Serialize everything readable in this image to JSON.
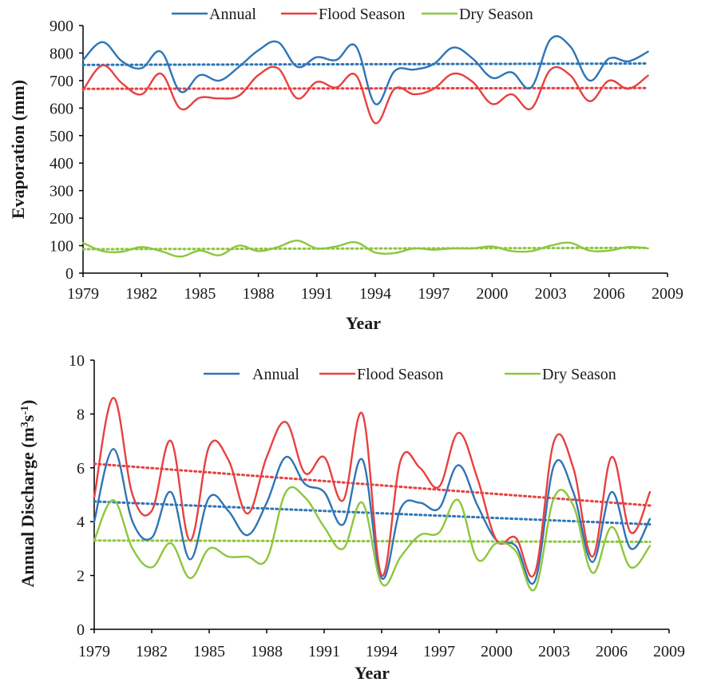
{
  "chart_data": [
    {
      "type": "line",
      "title": "",
      "xlabel": "Year",
      "ylabel": "Evaporation (mm)",
      "xlim": [
        1979,
        2009
      ],
      "ylim": [
        0,
        900
      ],
      "xticks": [
        1979,
        1982,
        1985,
        1988,
        1991,
        1994,
        1997,
        2000,
        2003,
        2006,
        2009
      ],
      "yticks": [
        0,
        100,
        200,
        300,
        400,
        500,
        600,
        700,
        800,
        900
      ],
      "legend_position": "top",
      "x": [
        1979,
        1980,
        1981,
        1982,
        1983,
        1984,
        1985,
        1986,
        1987,
        1988,
        1989,
        1990,
        1991,
        1992,
        1993,
        1994,
        1995,
        1996,
        1997,
        1998,
        1999,
        2000,
        2001,
        2002,
        2003,
        2004,
        2005,
        2006,
        2007,
        2008
      ],
      "series": [
        {
          "name": "Annual",
          "color": "#2e75b6",
          "values": [
            775,
            840,
            770,
            745,
            805,
            660,
            720,
            700,
            750,
            810,
            840,
            750,
            785,
            775,
            825,
            615,
            735,
            740,
            760,
            820,
            780,
            710,
            730,
            675,
            850,
            825,
            700,
            780,
            770,
            805
          ],
          "trend": [
            757,
            762
          ]
        },
        {
          "name": "Flood Season",
          "color": "#e84040",
          "values": [
            665,
            755,
            690,
            650,
            725,
            598,
            638,
            635,
            645,
            720,
            745,
            635,
            695,
            675,
            720,
            545,
            670,
            650,
            670,
            725,
            695,
            615,
            650,
            598,
            740,
            720,
            625,
            700,
            670,
            718
          ],
          "trend": [
            670,
            673
          ]
        },
        {
          "name": "Dry Season",
          "color": "#8dc63f",
          "values": [
            110,
            80,
            78,
            95,
            80,
            60,
            82,
            65,
            100,
            80,
            95,
            118,
            90,
            97,
            112,
            75,
            73,
            90,
            85,
            90,
            90,
            97,
            80,
            80,
            100,
            110,
            82,
            82,
            95,
            90
          ],
          "trend": [
            87,
            92
          ]
        }
      ]
    },
    {
      "type": "line",
      "title": "",
      "xlabel": "Year",
      "ylabel": "Annual Discharge (m",
      "ylabel_sup1": "3",
      "ylabel_mid": "s",
      "ylabel_sup2": "-1",
      "ylabel_end": ")",
      "xlim": [
        1979,
        2009
      ],
      "ylim": [
        0,
        10
      ],
      "xticks": [
        1979,
        1982,
        1985,
        1988,
        1991,
        1994,
        1997,
        2000,
        2003,
        2006,
        2009
      ],
      "yticks": [
        0,
        2,
        4,
        6,
        8,
        10
      ],
      "legend_position": "top-right",
      "x": [
        1979,
        1980,
        1981,
        1982,
        1983,
        1984,
        1985,
        1986,
        1987,
        1988,
        1989,
        1990,
        1991,
        1992,
        1993,
        1994,
        1995,
        1996,
        1997,
        1998,
        1999,
        2000,
        2001,
        2002,
        2003,
        2004,
        2005,
        2006,
        2007,
        2008
      ],
      "series": [
        {
          "name": "Annual",
          "color": "#2e75b6",
          "values": [
            4.0,
            6.7,
            4.0,
            3.4,
            5.1,
            2.6,
            4.9,
            4.4,
            3.5,
            4.7,
            6.4,
            5.4,
            5.1,
            3.9,
            6.3,
            1.9,
            4.5,
            4.7,
            4.5,
            6.1,
            4.6,
            3.3,
            3.1,
            1.8,
            6.1,
            5.1,
            2.5,
            5.1,
            3.0,
            4.1
          ],
          "trend": [
            4.75,
            3.9
          ]
        },
        {
          "name": "Flood Season",
          "color": "#e84040",
          "values": [
            4.9,
            8.6,
            5.0,
            4.4,
            7.0,
            3.3,
            6.8,
            6.3,
            4.3,
            6.4,
            7.7,
            5.8,
            6.4,
            4.8,
            8.0,
            2.0,
            6.3,
            6.0,
            5.3,
            7.3,
            5.6,
            3.3,
            3.4,
            2.1,
            7.0,
            6.0,
            2.7,
            6.4,
            3.6,
            5.1
          ],
          "trend": [
            6.15,
            4.6
          ]
        },
        {
          "name": "Dry Season",
          "color": "#8dc63f",
          "values": [
            3.3,
            4.8,
            3.0,
            2.3,
            3.2,
            1.9,
            3.0,
            2.7,
            2.7,
            2.6,
            5.1,
            4.9,
            3.8,
            3.0,
            4.7,
            1.7,
            2.7,
            3.5,
            3.6,
            4.8,
            2.6,
            3.2,
            2.9,
            1.5,
            4.9,
            4.6,
            2.1,
            3.8,
            2.3,
            3.1
          ],
          "trend": [
            3.3,
            3.25
          ]
        }
      ]
    }
  ]
}
